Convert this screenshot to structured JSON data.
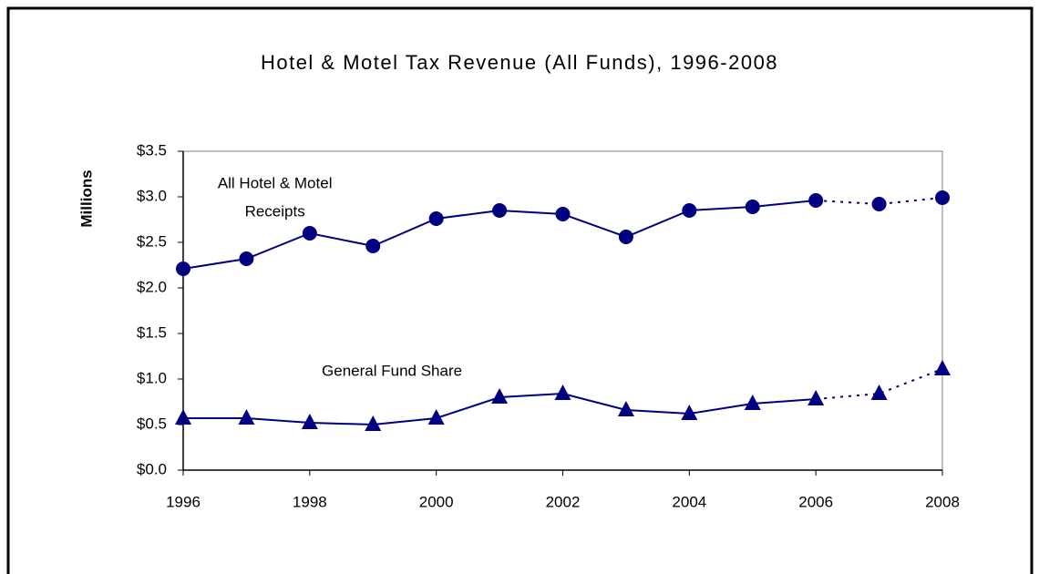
{
  "chart_data": {
    "type": "line",
    "title": "Hotel & Motel Tax Revenue (All Funds), 1996-2008",
    "y_label": "Millions",
    "x": [
      1996,
      1997,
      1998,
      1999,
      2000,
      2001,
      2002,
      2003,
      2004,
      2005,
      2006,
      2007,
      2008
    ],
    "series": [
      {
        "name": "All Hotel & Motel Receipts",
        "color": "#000080",
        "marker": "circle",
        "dotted_from_x": 2006,
        "values": [
          2.21,
          2.32,
          2.6,
          2.46,
          2.76,
          2.85,
          2.81,
          2.56,
          2.85,
          2.89,
          2.96,
          2.92,
          2.99
        ]
      },
      {
        "name": "General Fund Share",
        "color": "#000080",
        "marker": "triangle",
        "dotted_from_x": 2006,
        "values": [
          0.57,
          0.57,
          0.52,
          0.5,
          0.57,
          0.8,
          0.84,
          0.66,
          0.62,
          0.73,
          0.78,
          0.84,
          1.11
        ]
      }
    ],
    "annotations": [
      {
        "lines": [
          "All Hotel & Motel",
          "Receipts"
        ],
        "x": 1997.45,
        "y": 3.14
      },
      {
        "lines": [
          "General Fund Share"
        ],
        "x": 1999.3,
        "y": 1.08
      }
    ],
    "xlim": [
      1996,
      2008
    ],
    "xticks": [
      1996,
      1998,
      2000,
      2002,
      2004,
      2006,
      2008
    ],
    "ylim": [
      0,
      3.5
    ],
    "yticks": [
      {
        "value": 0,
        "label": "$0.0"
      },
      {
        "value": 0.5,
        "label": "$0.5"
      },
      {
        "value": 1,
        "label": "$1.0"
      },
      {
        "value": 1.5,
        "label": "$1.5"
      },
      {
        "value": 2,
        "label": "$2.0"
      },
      {
        "value": 2.5,
        "label": "$2.5"
      },
      {
        "value": 3,
        "label": "$3.0"
      },
      {
        "value": 3.5,
        "label": "$3.5"
      }
    ],
    "grid": false
  }
}
